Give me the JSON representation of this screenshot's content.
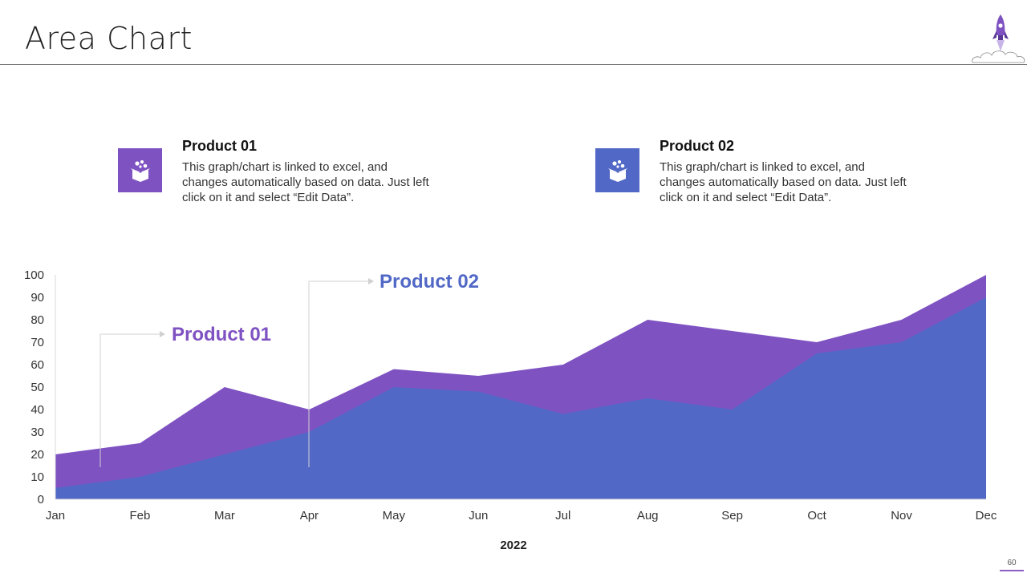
{
  "slide": {
    "title": "Area Chart",
    "page_number": "60"
  },
  "colors": {
    "product_01": "#7F52C2",
    "product_02": "#5168C6"
  },
  "products": [
    {
      "name": "Product 01",
      "icon": "gift-box-icon",
      "description": "This graph/chart is linked to excel, and changes automatically based on data. Just left click on it and select “Edit Data”."
    },
    {
      "name": "Product 02",
      "icon": "gift-box-icon",
      "description": "This graph/chart is linked to excel, and changes automatically based on data. Just left click on it and select “Edit Data”."
    }
  ],
  "chart_data": {
    "type": "area",
    "title": "",
    "xlabel": "2022",
    "ylabel": "",
    "categories": [
      "Jan",
      "Feb",
      "Mar",
      "Apr",
      "May",
      "Jun",
      "Jul",
      "Aug",
      "Sep",
      "Oct",
      "Nov",
      "Dec"
    ],
    "ylim": [
      0,
      100
    ],
    "yticks": [
      0,
      10,
      20,
      30,
      40,
      50,
      60,
      70,
      80,
      90,
      100
    ],
    "grid": false,
    "series": [
      {
        "name": "Product 01",
        "color": "#7F52C2",
        "values": [
          20,
          25,
          50,
          40,
          58,
          55,
          60,
          80,
          75,
          70,
          80,
          100
        ]
      },
      {
        "name": "Product 02",
        "color": "#5168C6",
        "values": [
          5,
          10,
          20,
          30,
          50,
          48,
          38,
          45,
          40,
          65,
          70,
          90
        ]
      }
    ],
    "annotations": [
      {
        "text": "Product 01",
        "series": "Product 01",
        "anchor_category": "Jan"
      },
      {
        "text": "Product 02",
        "series": "Product 02",
        "anchor_category": "Apr"
      }
    ]
  }
}
